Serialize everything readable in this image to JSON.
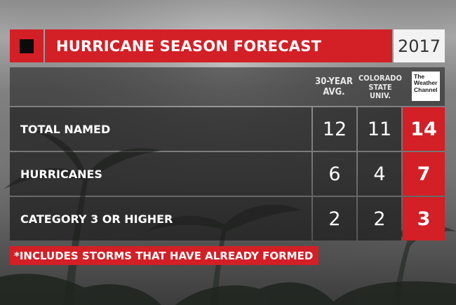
{
  "header": {
    "title": "HURRICANE SEASON FORECAST",
    "year": "2017",
    "logo_icon": "square-logo-icon"
  },
  "columns": {
    "avg": "30-YEAR AVG.",
    "csu": "COLORADO STATE UNIV.",
    "twc_logo": "The Weather Channel"
  },
  "rows": [
    {
      "label": "TOTAL NAMED",
      "avg": "12",
      "csu": "11",
      "twc": "14"
    },
    {
      "label": "HURRICANES",
      "avg": "6",
      "csu": "4",
      "twc": "7"
    },
    {
      "label": "CATEGORY 3 OR HIGHER",
      "avg": "2",
      "csu": "2",
      "twc": "3"
    }
  ],
  "footnote": "*INCLUDES STORMS THAT HAVE ALREADY FORMED",
  "colors": {
    "accent": "#d31f26",
    "panel": "#1c1c1c",
    "year_bg": "#f2f2f2"
  }
}
